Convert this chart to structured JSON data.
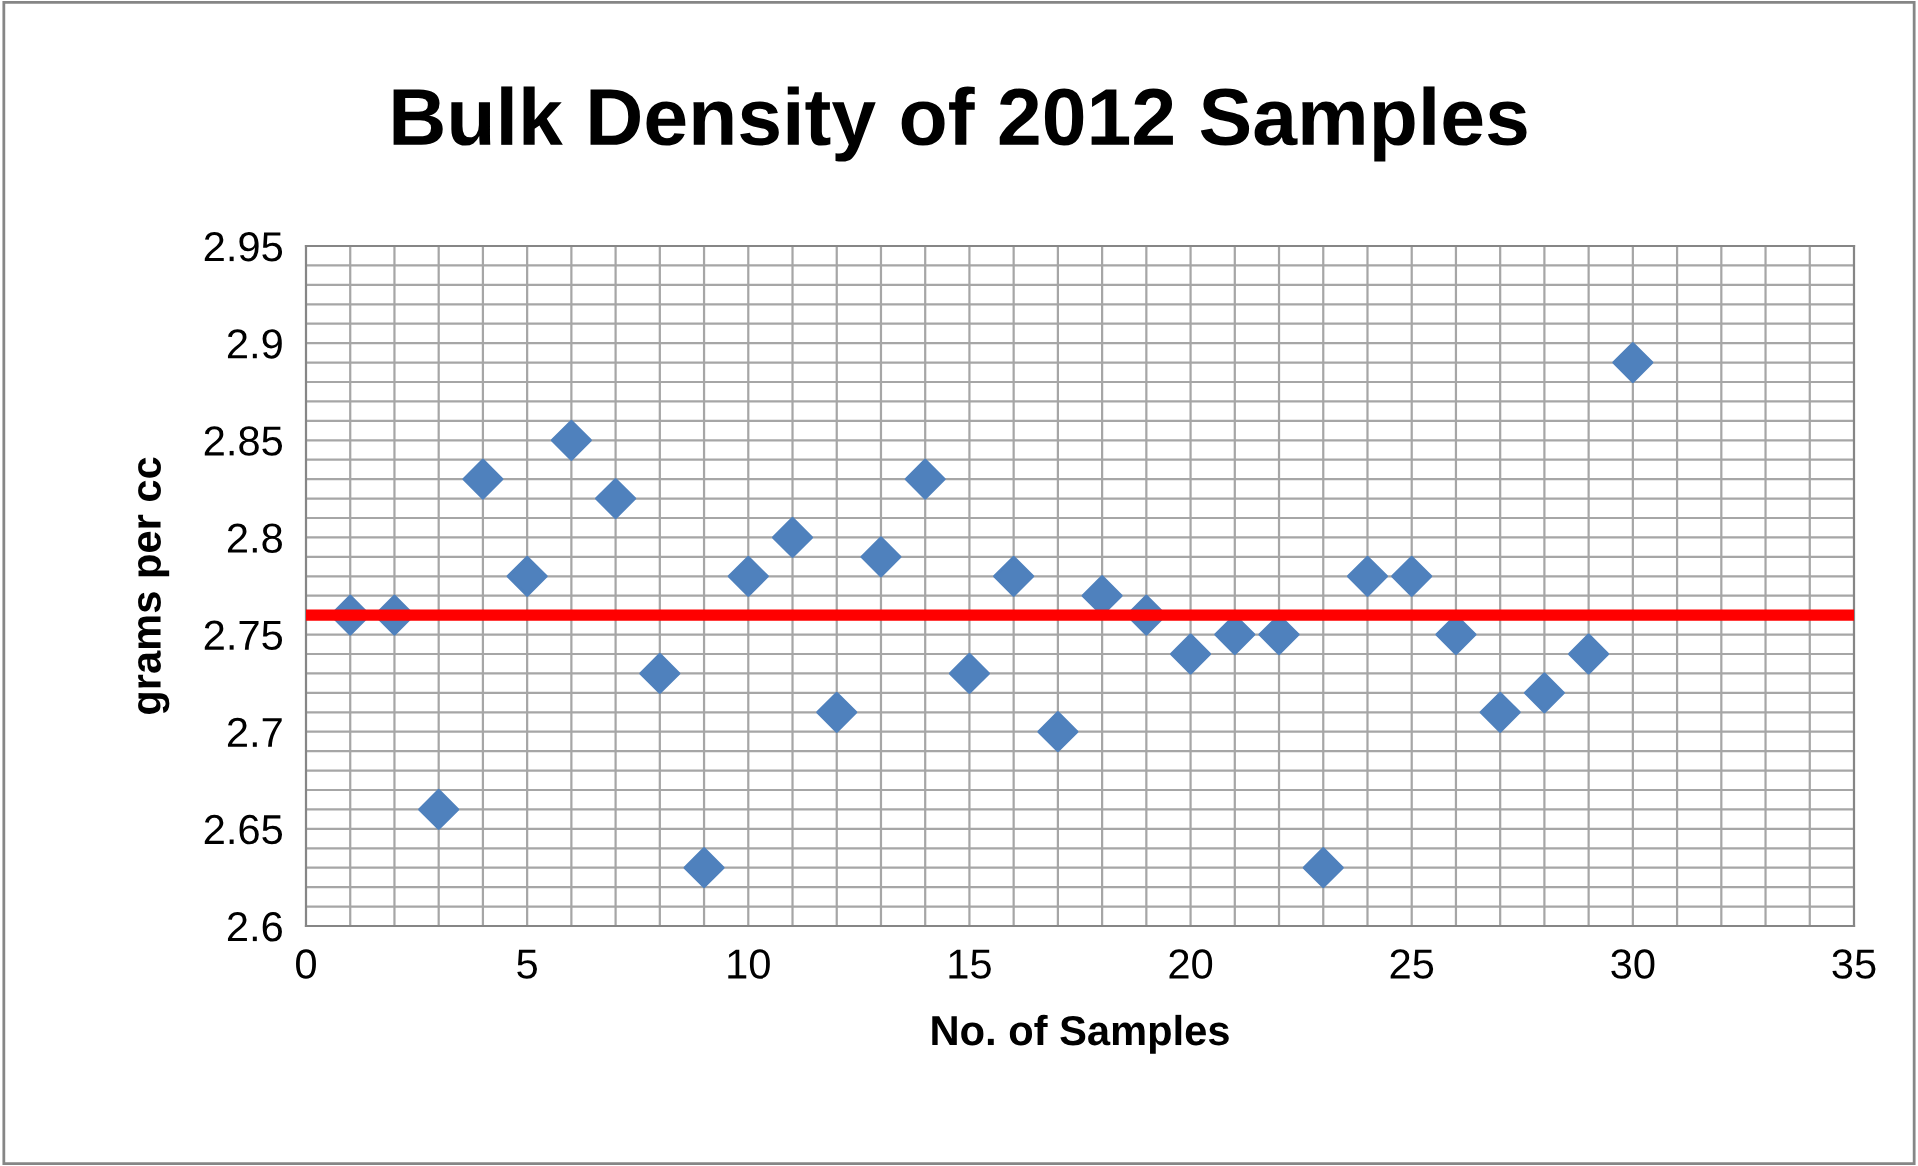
{
  "chart_data": {
    "type": "scatter",
    "title": "Bulk Density of 2012 Samples",
    "xlabel": "No. of Samples",
    "ylabel": "grams per cc",
    "x": [
      1,
      2,
      3,
      4,
      5,
      6,
      7,
      8,
      9,
      10,
      11,
      12,
      13,
      14,
      15,
      16,
      17,
      18,
      19,
      20,
      21,
      22,
      23,
      24,
      25,
      26,
      27,
      28,
      29,
      30
    ],
    "series": [
      {
        "color": "#4f81bd",
        "values": [
          2.76,
          2.76,
          2.66,
          2.83,
          2.78,
          2.85,
          2.82,
          2.73,
          2.63,
          2.78,
          2.8,
          2.71,
          2.79,
          2.83,
          2.73,
          2.78,
          2.7,
          2.77,
          2.76,
          2.74,
          2.75,
          2.75,
          2.63,
          2.78,
          2.78,
          2.75,
          2.71,
          2.72,
          2.74,
          2.89
        ]
      }
    ],
    "xlim": [
      0,
      35
    ],
    "xticks": [
      0,
      5,
      10,
      15,
      20,
      25,
      30,
      35
    ],
    "ylim": [
      2.6,
      2.95
    ],
    "yticks": [
      {
        "value": 2.6,
        "label": "2.6"
      },
      2.65,
      {
        "value": 2.7,
        "label": "2.7"
      },
      2.75,
      {
        "value": 2.8,
        "label": "2.8"
      },
      2.85,
      {
        "value": 2.9,
        "label": "2.9"
      },
      2.95
    ],
    "ref_lines": [
      {
        "axis": "y",
        "value": 2.76,
        "color": "#ff0000",
        "line_style": "solid"
      }
    ],
    "grid": true,
    "marker": "diamond",
    "legend": false
  }
}
